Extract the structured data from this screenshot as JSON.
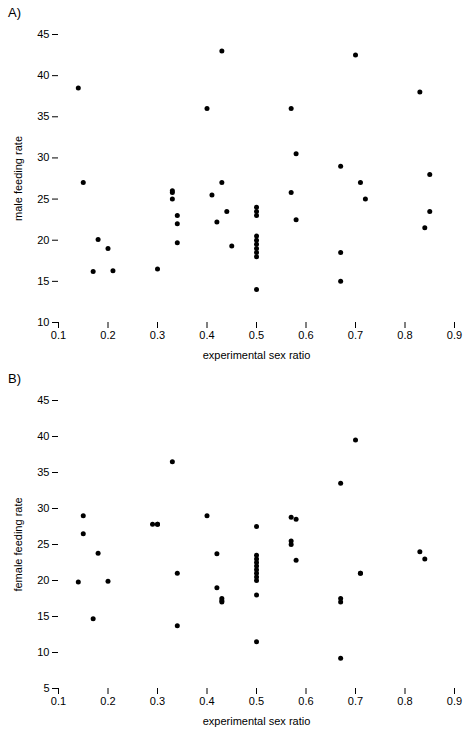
{
  "chart_data": [
    {
      "type": "scatter",
      "title": "A)",
      "x_label": "experimental sex ratio",
      "y_label": "male feeding rate",
      "color": "#000000",
      "grid": false,
      "xlim": [
        0.1,
        0.9
      ],
      "ylim": [
        10,
        45
      ],
      "xticks": [
        0.1,
        0.2,
        0.3,
        0.4,
        0.5,
        0.6,
        0.7,
        0.8,
        0.9
      ],
      "yticks": [
        10,
        15,
        20,
        25,
        30,
        35,
        40,
        45
      ],
      "x": [
        0.14,
        0.15,
        0.17,
        0.18,
        0.2,
        0.21,
        0.3,
        0.33,
        0.33,
        0.33,
        0.34,
        0.34,
        0.34,
        0.4,
        0.41,
        0.42,
        0.43,
        0.43,
        0.44,
        0.45,
        0.5,
        0.5,
        0.5,
        0.5,
        0.5,
        0.5,
        0.5,
        0.5,
        0.5,
        0.5,
        0.57,
        0.57,
        0.58,
        0.58,
        0.67,
        0.67,
        0.67,
        0.7,
        0.71,
        0.72,
        0.83,
        0.84,
        0.85,
        0.85
      ],
      "values": [
        38.5,
        27.0,
        16.2,
        20.1,
        19.0,
        16.3,
        16.5,
        26.0,
        25.8,
        25.0,
        23.0,
        22.0,
        19.7,
        36.0,
        25.5,
        22.2,
        43.0,
        27.0,
        23.5,
        19.3,
        24.0,
        23.5,
        23.0,
        20.5,
        20.0,
        19.5,
        19.0,
        18.5,
        18.0,
        14.0,
        36.0,
        25.8,
        30.5,
        22.5,
        29.0,
        18.5,
        15.0,
        42.5,
        27.0,
        25.0,
        38.0,
        21.5,
        28.0,
        23.5
      ]
    },
    {
      "type": "scatter",
      "title": "B)",
      "x_label": "experimental sex ratio",
      "y_label": "female feeding rate",
      "color": "#000000",
      "grid": false,
      "xlim": [
        0.1,
        0.9
      ],
      "ylim": [
        5,
        45
      ],
      "xticks": [
        0.1,
        0.2,
        0.3,
        0.4,
        0.5,
        0.6,
        0.7,
        0.8,
        0.9
      ],
      "yticks": [
        5,
        10,
        15,
        20,
        25,
        30,
        35,
        40,
        45
      ],
      "x": [
        0.14,
        0.15,
        0.15,
        0.17,
        0.18,
        0.2,
        0.29,
        0.3,
        0.3,
        0.33,
        0.34,
        0.34,
        0.4,
        0.42,
        0.42,
        0.43,
        0.43,
        0.43,
        0.5,
        0.5,
        0.5,
        0.5,
        0.5,
        0.5,
        0.5,
        0.5,
        0.5,
        0.5,
        0.5,
        0.57,
        0.57,
        0.57,
        0.58,
        0.58,
        0.67,
        0.67,
        0.67,
        0.67,
        0.7,
        0.71,
        0.71,
        0.83,
        0.84
      ],
      "values": [
        19.8,
        26.5,
        29.0,
        14.7,
        23.8,
        19.9,
        27.8,
        27.8,
        27.8,
        36.5,
        13.7,
        21.0,
        29.0,
        23.7,
        19.0,
        17.5,
        17.2,
        17.0,
        27.5,
        23.5,
        23.0,
        22.5,
        22.0,
        21.5,
        21.0,
        20.5,
        20.0,
        18.0,
        11.5,
        28.8,
        25.5,
        25.0,
        28.5,
        22.8,
        33.5,
        17.5,
        17.0,
        9.2,
        39.5,
        21.0,
        21.0,
        24.0,
        23.0
      ]
    }
  ]
}
